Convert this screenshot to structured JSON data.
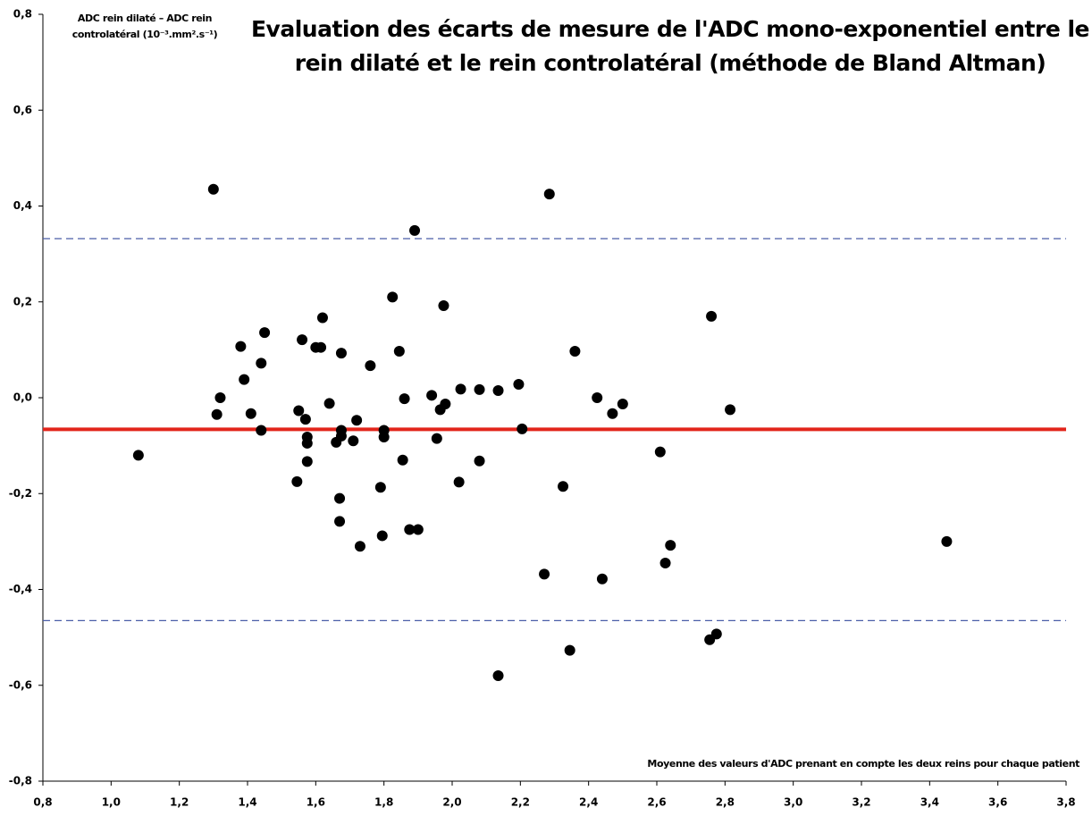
{
  "chart_data": {
    "type": "scatter",
    "title": "Evaluation des écarts de mesure de l'ADC mono-exponentiel entre le rein dilaté et le rein controlatéral (méthode de Bland Altman)",
    "y_label": "ADC rein dilaté – ADC rein controlatéral (10⁻³.mm².s⁻¹)",
    "x_label": "Moyenne des valeurs d'ADC prenant en compte les deux reins pour chaque patient",
    "color": "#000000",
    "xlim": [
      0.8,
      3.8
    ],
    "ylim": [
      -0.8,
      0.8
    ],
    "xticks": [
      {
        "value": 0.8,
        "label": "0,8"
      },
      {
        "value": 1.0,
        "label": "1,0"
      },
      {
        "value": 1.2,
        "label": "1,2"
      },
      {
        "value": 1.4,
        "label": "1,4"
      },
      {
        "value": 1.6,
        "label": "1,6"
      },
      {
        "value": 1.8,
        "label": "1,8"
      },
      {
        "value": 2.0,
        "label": "2,0"
      },
      {
        "value": 2.2,
        "label": "2,2"
      },
      {
        "value": 2.4,
        "label": "2,4"
      },
      {
        "value": 2.6,
        "label": "2,6"
      },
      {
        "value": 2.8,
        "label": "2,8"
      },
      {
        "value": 3.0,
        "label": "3,0"
      },
      {
        "value": 3.2,
        "label": "3,2"
      },
      {
        "value": 3.4,
        "label": "3,4"
      },
      {
        "value": 3.6,
        "label": "3,6"
      },
      {
        "value": 3.8,
        "label": "3,8"
      }
    ],
    "yticks": [
      {
        "value": -0.8,
        "label": "-0,8"
      },
      {
        "value": -0.6,
        "label": "-0,6"
      },
      {
        "value": -0.4,
        "label": "-0,4"
      },
      {
        "value": -0.2,
        "label": "-0,2"
      },
      {
        "value": 0.0,
        "label": "0,0"
      },
      {
        "value": 0.2,
        "label": "0,2"
      },
      {
        "value": 0.4,
        "label": "0,4"
      },
      {
        "value": 0.6,
        "label": "0,6"
      },
      {
        "value": 0.8,
        "label": "0,8"
      }
    ],
    "reference_lines": [
      {
        "value": -0.066,
        "color": "#e2251b",
        "dashed": false
      },
      {
        "value": 0.332,
        "color": "#4a5ea8",
        "dashed": true
      },
      {
        "value": -0.465,
        "color": "#4a5ea8",
        "dashed": true
      }
    ],
    "x": [
      1.08,
      1.3,
      1.31,
      1.32,
      1.38,
      1.39,
      1.41,
      1.44,
      1.44,
      1.45,
      1.55,
      1.545,
      1.56,
      1.57,
      1.575,
      1.575,
      1.575,
      1.6,
      1.615,
      1.62,
      1.64,
      1.66,
      1.67,
      1.67,
      1.675,
      1.675,
      1.675,
      1.71,
      1.72,
      1.73,
      1.76,
      1.79,
      1.795,
      1.8,
      1.8,
      1.825,
      1.845,
      1.855,
      1.86,
      1.875,
      1.89,
      1.9,
      1.94,
      1.955,
      1.965,
      1.975,
      1.98,
      2.02,
      2.025,
      2.08,
      2.08,
      2.135,
      2.135,
      2.195,
      2.205,
      2.27,
      2.285,
      2.325,
      2.345,
      2.36,
      2.425,
      2.44,
      2.47,
      2.5,
      2.61,
      2.625,
      2.64,
      2.755,
      2.76,
      2.775,
      2.815,
      3.45
    ],
    "values": [
      -0.12,
      0.435,
      -0.035,
      0.0,
      0.107,
      0.038,
      -0.033,
      0.072,
      -0.068,
      0.136,
      -0.027,
      -0.175,
      0.121,
      -0.045,
      -0.082,
      -0.095,
      -0.133,
      0.105,
      0.105,
      0.167,
      -0.012,
      -0.093,
      -0.21,
      -0.258,
      0.093,
      -0.068,
      -0.08,
      -0.09,
      -0.047,
      -0.31,
      0.067,
      -0.187,
      -0.288,
      -0.068,
      -0.082,
      0.21,
      0.097,
      -0.13,
      -0.002,
      -0.275,
      0.349,
      -0.275,
      0.005,
      -0.085,
      -0.025,
      0.192,
      -0.013,
      -0.176,
      0.018,
      0.017,
      -0.132,
      0.015,
      -0.58,
      0.028,
      -0.065,
      -0.368,
      0.425,
      -0.185,
      -0.527,
      0.097,
      0.0,
      -0.378,
      -0.033,
      -0.013,
      -0.113,
      -0.345,
      -0.308,
      -0.505,
      0.17,
      -0.493,
      -0.025,
      -0.3
    ]
  }
}
